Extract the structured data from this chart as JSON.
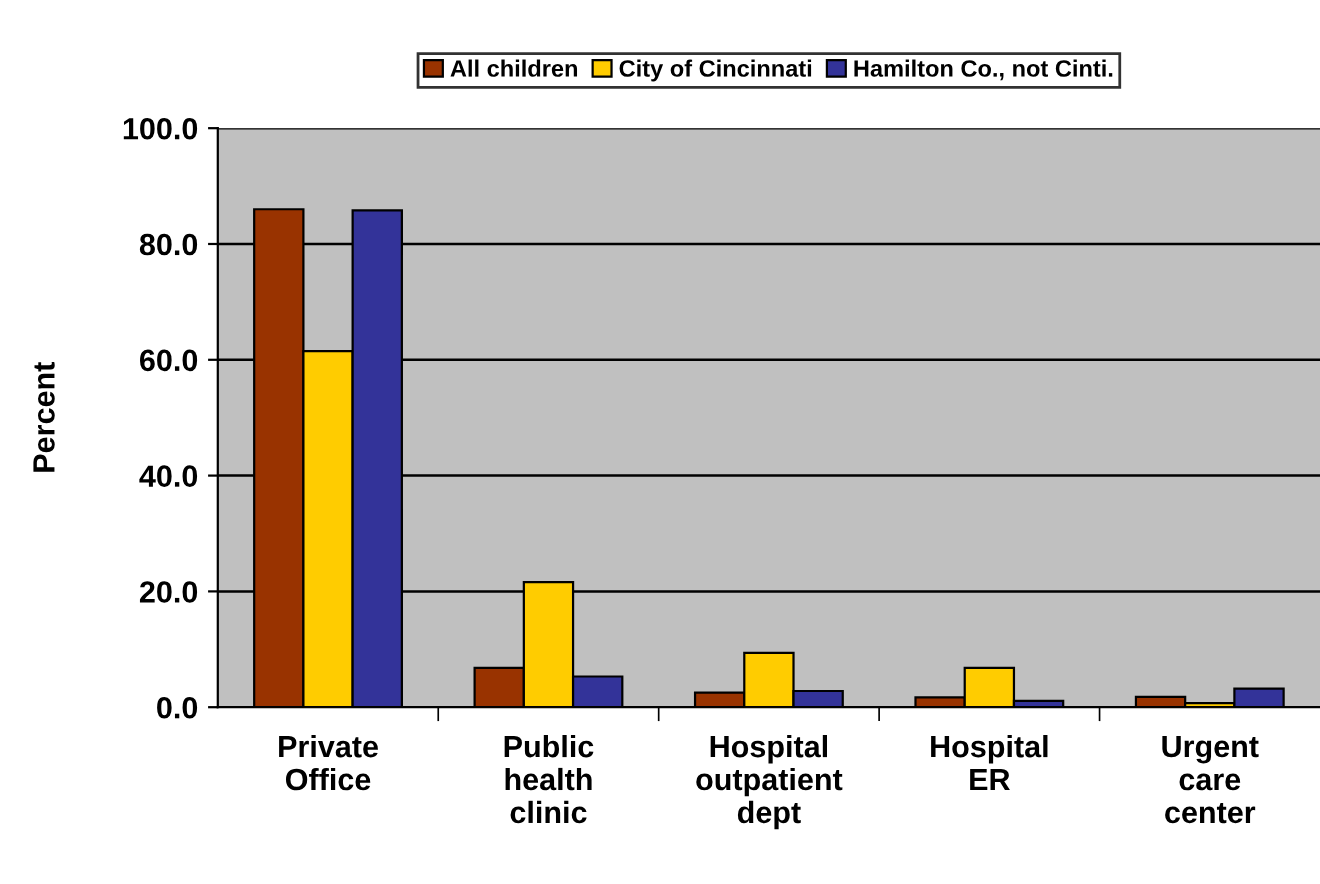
{
  "chart_data": {
    "type": "bar",
    "ylabel": "Percent",
    "categories": [
      "Private\nOffice",
      "Public\nhealth\nclinic",
      "Hospital\noutpatient\ndept",
      "Hospital\nER",
      "Urgent\ncare\ncenter"
    ],
    "series": [
      {
        "name": "All children",
        "color": "#993300",
        "values": [
          86.0,
          6.8,
          2.5,
          1.7,
          1.8
        ]
      },
      {
        "name": "City of Cincinnati",
        "color": "#ffcc00",
        "values": [
          61.5,
          21.6,
          9.4,
          6.8,
          0.7
        ]
      },
      {
        "name": "Hamilton Co., not Cinti.",
        "color": "#333399",
        "values": [
          85.8,
          5.3,
          2.8,
          1.1,
          3.2
        ]
      }
    ],
    "ylim": [
      0,
      100
    ],
    "yticks": [
      {
        "value": 0,
        "label": "0.0"
      },
      {
        "value": 20,
        "label": "20.0"
      },
      {
        "value": 40,
        "label": "40.0"
      },
      {
        "value": 60,
        "label": "60.0"
      },
      {
        "value": 80,
        "label": "80.0"
      },
      {
        "value": 100,
        "label": "100.0"
      }
    ],
    "grid": "y",
    "legend": "top"
  }
}
